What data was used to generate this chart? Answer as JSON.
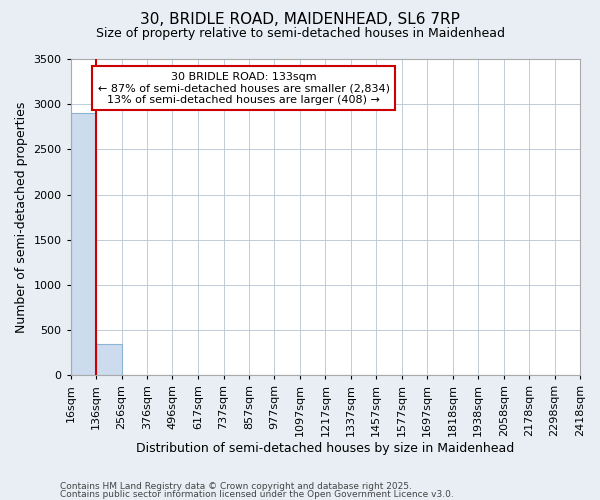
{
  "title_line1": "30, BRIDLE ROAD, MAIDENHEAD, SL6 7RP",
  "title_line2": "Size of property relative to semi-detached houses in Maidenhead",
  "xlabel": "Distribution of semi-detached houses by size in Maidenhead",
  "ylabel": "Number of semi-detached properties",
  "annotation_line1": "30 BRIDLE ROAD: 133sqm",
  "annotation_line2": "← 87% of semi-detached houses are smaller (2,834)",
  "annotation_line3": "13% of semi-detached houses are larger (408) →",
  "footer_line1": "Contains HM Land Registry data © Crown copyright and database right 2025.",
  "footer_line2": "Contains public sector information licensed under the Open Government Licence v3.0.",
  "bar_edges": [
    16,
    136,
    256,
    376,
    496,
    617,
    737,
    857,
    977,
    1097,
    1217,
    1337,
    1457,
    1577,
    1697,
    1818,
    1938,
    2058,
    2178,
    2298,
    2418
  ],
  "bar_heights": [
    2900,
    350,
    0,
    0,
    0,
    0,
    0,
    0,
    0,
    0,
    0,
    0,
    0,
    0,
    0,
    0,
    0,
    0,
    0,
    0
  ],
  "property_size": 133,
  "bar_color": "#ccdcee",
  "bar_edge_color": "#8ab4d4",
  "vline_color": "#cc0000",
  "annotation_box_facecolor": "#ffffff",
  "annotation_box_edgecolor": "#cc0000",
  "ylim": [
    0,
    3500
  ],
  "yticks": [
    0,
    500,
    1000,
    1500,
    2000,
    2500,
    3000,
    3500
  ],
  "background_color": "#e8eef4",
  "plot_background": "#ffffff",
  "grid_color": "#c0ccd8",
  "title_fontsize": 11,
  "subtitle_fontsize": 9,
  "ylabel_fontsize": 9,
  "xlabel_fontsize": 9,
  "tick_fontsize": 8,
  "annotation_fontsize": 8,
  "footer_fontsize": 6.5
}
